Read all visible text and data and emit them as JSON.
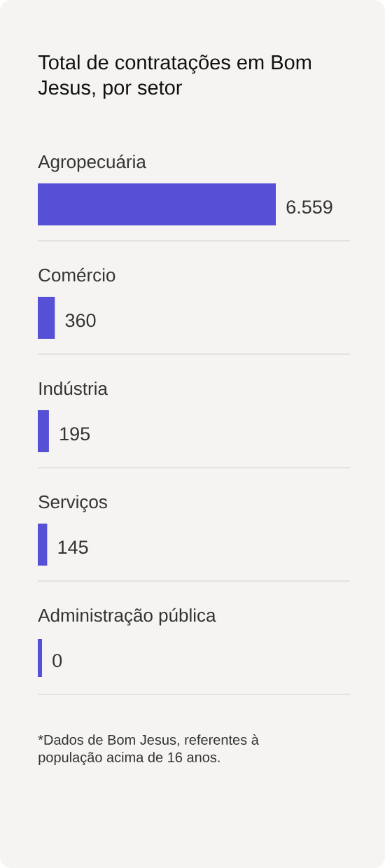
{
  "chart_data": {
    "type": "bar",
    "orientation": "horizontal",
    "title": "Total de contratações em Bom Jesus, por setor",
    "categories": [
      "Agropecuária",
      "Comércio",
      "Indústria",
      "Serviços",
      "Administração pública"
    ],
    "values": [
      6559,
      360,
      195,
      145,
      0
    ],
    "value_labels": [
      "6.559",
      "360",
      "195",
      "145",
      "0"
    ],
    "color": "#5650d6",
    "annotations": [
      "*Dados de Bom Jesus, referentes à população acima de 16 anos."
    ]
  }
}
